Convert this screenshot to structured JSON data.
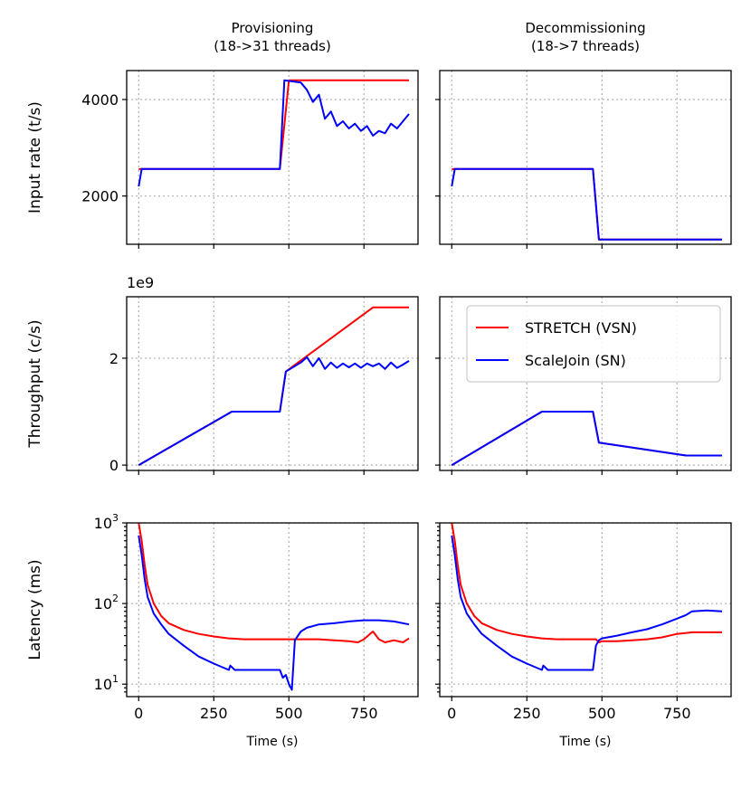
{
  "colors": {
    "stretch": "#ff0000",
    "scalejoin": "#0000ff"
  },
  "chart_data": {
    "type": "line",
    "columns": [
      "Provisioning\n(18->31 threads)",
      "Decommissioning\n(18->7 threads)"
    ],
    "xlabel": "Time (s)",
    "xlim": [
      -40,
      930
    ],
    "xticks": [
      0,
      250,
      500,
      750
    ],
    "xtick_labels": [
      "0",
      "250",
      "500",
      "750"
    ],
    "legend": {
      "position": "middle-right",
      "labels": [
        "STRETCH (VSN)",
        "ScaleJoin (SN)"
      ]
    },
    "rows": [
      {
        "ylabel": "Input rate (t/s)",
        "scale": "linear",
        "ylim": [
          1000,
          4600
        ],
        "yticks": [
          2000,
          4000
        ],
        "ytick_labels": [
          "2000",
          "4000"
        ],
        "multiplier": "",
        "panels": [
          {
            "series": [
              {
                "name": "STRETCH (VSN)",
                "x": [
                  0,
                  5,
                  470,
                  500,
                  900
                ],
                "y": [
                  2550,
                  2560,
                  2560,
                  4400,
                  4400
                ]
              },
              {
                "name": "ScaleJoin (SN)",
                "x": [
                  0,
                  10,
                  470,
                  485,
                  540,
                  560,
                  580,
                  600,
                  620,
                  640,
                  660,
                  680,
                  700,
                  720,
                  740,
                  760,
                  780,
                  800,
                  820,
                  840,
                  860,
                  880,
                  900
                ],
                "y": [
                  2200,
                  2560,
                  2560,
                  4400,
                  4350,
                  4200,
                  3950,
                  4100,
                  3600,
                  3750,
                  3450,
                  3550,
                  3400,
                  3500,
                  3350,
                  3450,
                  3250,
                  3350,
                  3300,
                  3500,
                  3400,
                  3550,
                  3700
                ]
              }
            ]
          },
          {
            "series": [
              {
                "name": "STRETCH (VSN)",
                "x": [
                  0,
                  5,
                  470,
                  490,
                  900
                ],
                "y": [
                  2550,
                  2560,
                  2560,
                  1100,
                  1100
                ]
              },
              {
                "name": "ScaleJoin (SN)",
                "x": [
                  0,
                  10,
                  470,
                  490,
                  900
                ],
                "y": [
                  2200,
                  2560,
                  2560,
                  1100,
                  1100
                ]
              }
            ]
          }
        ]
      },
      {
        "ylabel": "Throughput (c/s)",
        "scale": "linear",
        "ylim": [
          -0.1,
          3.15
        ],
        "yticks": [
          0,
          2
        ],
        "ytick_labels": [
          "0",
          "2"
        ],
        "multiplier": "1e9",
        "panels": [
          {
            "series": [
              {
                "name": "STRETCH (VSN)",
                "x": [
                  0,
                  310,
                  470,
                  490,
                  780,
                  900
                ],
                "y": [
                  0,
                  1.0,
                  1.0,
                  1.75,
                  2.95,
                  2.95
                ]
              },
              {
                "name": "ScaleJoin (SN)",
                "x": [
                  0,
                  310,
                  470,
                  490,
                  540,
                  560,
                  580,
                  600,
                  620,
                  640,
                  660,
                  680,
                  700,
                  720,
                  740,
                  760,
                  780,
                  800,
                  820,
                  840,
                  860,
                  880,
                  900
                ],
                "y": [
                  0,
                  1.0,
                  1.0,
                  1.75,
                  1.92,
                  2.02,
                  1.85,
                  2.0,
                  1.8,
                  1.92,
                  1.82,
                  1.9,
                  1.83,
                  1.9,
                  1.82,
                  1.9,
                  1.85,
                  1.9,
                  1.8,
                  1.92,
                  1.82,
                  1.88,
                  1.95
                ]
              }
            ]
          },
          {
            "series": [
              {
                "name": "STRETCH (VSN)",
                "x": [
                  0,
                  300,
                  470,
                  490,
                  780,
                  900
                ],
                "y": [
                  0,
                  1.0,
                  1.0,
                  0.42,
                  0.18,
                  0.18
                ]
              },
              {
                "name": "ScaleJoin (SN)",
                "x": [
                  0,
                  300,
                  470,
                  490,
                  780,
                  900
                ],
                "y": [
                  0,
                  1.0,
                  1.0,
                  0.42,
                  0.18,
                  0.18
                ]
              }
            ]
          }
        ]
      },
      {
        "ylabel": "Latency (ms)",
        "scale": "log",
        "ylim": [
          7,
          1000
        ],
        "yticks": [
          10,
          100,
          1000
        ],
        "ytick_labels": [
          "10^1",
          "10^2",
          "10^3"
        ],
        "multiplier": "",
        "panels": [
          {
            "series": [
              {
                "name": "STRETCH (VSN)",
                "x": [
                  0,
                  10,
                  20,
                  30,
                  50,
                  75,
                  100,
                  150,
                  200,
                  250,
                  300,
                  350,
                  400,
                  450,
                  500,
                  550,
                  600,
                  650,
                  700,
                  730,
                  750,
                  770,
                  780,
                  800,
                  820,
                  850,
                  880,
                  900
                ],
                "y": [
                  1000,
                  600,
                  300,
                  170,
                  100,
                  70,
                  57,
                  47,
                  42,
                  39,
                  37,
                  36,
                  36,
                  36,
                  36,
                  36,
                  36,
                  35,
                  34,
                  33,
                  36,
                  42,
                  45,
                  36,
                  33,
                  35,
                  33,
                  37
                ]
              },
              {
                "name": "ScaleJoin (SN)",
                "x": [
                  0,
                  10,
                  20,
                  30,
                  50,
                  75,
                  100,
                  150,
                  200,
                  250,
                  300,
                  305,
                  320,
                  400,
                  470,
                  480,
                  490,
                  500,
                  510,
                  520,
                  540,
                  560,
                  600,
                  650,
                  700,
                  750,
                  800,
                  850,
                  900
                ],
                "y": [
                  700,
                  400,
                  200,
                  120,
                  75,
                  55,
                  42,
                  30,
                  22,
                  18,
                  15,
                  17,
                  15,
                  15,
                  15,
                  12,
                  13,
                  10,
                  8.5,
                  35,
                  45,
                  50,
                  55,
                  57,
                  60,
                  62,
                  62,
                  60,
                  55
                ]
              }
            ]
          },
          {
            "series": [
              {
                "name": "STRETCH (VSN)",
                "x": [
                  0,
                  10,
                  20,
                  30,
                  50,
                  75,
                  100,
                  150,
                  200,
                  250,
                  300,
                  350,
                  400,
                  450,
                  480,
                  490,
                  500,
                  550,
                  600,
                  650,
                  700,
                  750,
                  800,
                  850,
                  900
                ],
                "y": [
                  1000,
                  600,
                  300,
                  170,
                  100,
                  70,
                  57,
                  47,
                  42,
                  39,
                  37,
                  36,
                  36,
                  36,
                  36,
                  33,
                  34,
                  34,
                  35,
                  36,
                  38,
                  42,
                  44,
                  44,
                  44
                ]
              },
              {
                "name": "ScaleJoin (SN)",
                "x": [
                  0,
                  10,
                  20,
                  30,
                  50,
                  75,
                  100,
                  150,
                  200,
                  250,
                  300,
                  305,
                  320,
                  400,
                  470,
                  480,
                  490,
                  500,
                  550,
                  600,
                  650,
                  700,
                  750,
                  780,
                  800,
                  850,
                  900
                ],
                "y": [
                  700,
                  400,
                  200,
                  120,
                  75,
                  55,
                  42,
                  30,
                  22,
                  18,
                  15,
                  17,
                  15,
                  15,
                  15,
                  30,
                  35,
                  37,
                  40,
                  44,
                  48,
                  55,
                  65,
                  72,
                  80,
                  82,
                  80
                ]
              }
            ]
          }
        ]
      }
    ]
  }
}
